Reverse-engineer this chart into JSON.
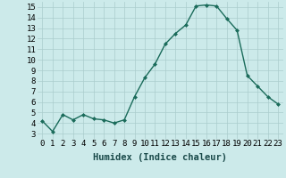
{
  "x": [
    0,
    1,
    2,
    3,
    4,
    5,
    6,
    7,
    8,
    9,
    10,
    11,
    12,
    13,
    14,
    15,
    16,
    17,
    18,
    19,
    20,
    21,
    22,
    23
  ],
  "y": [
    4.2,
    3.2,
    4.8,
    4.3,
    4.8,
    4.4,
    4.3,
    4.0,
    4.3,
    6.5,
    8.3,
    9.6,
    11.5,
    12.5,
    13.3,
    15.1,
    15.2,
    15.1,
    13.9,
    12.8,
    8.5,
    7.5,
    6.5,
    5.8
  ],
  "line_color": "#1a6b5a",
  "marker": "D",
  "marker_size": 2.0,
  "bg_color": "#cceaea",
  "grid_color": "#aacccc",
  "xlabel": "Humidex (Indice chaleur)",
  "xlim": [
    -0.5,
    23.5
  ],
  "ylim": [
    2.5,
    15.5
  ],
  "yticks": [
    3,
    4,
    5,
    6,
    7,
    8,
    9,
    10,
    11,
    12,
    13,
    14,
    15
  ],
  "xticks": [
    0,
    1,
    2,
    3,
    4,
    5,
    6,
    7,
    8,
    9,
    10,
    11,
    12,
    13,
    14,
    15,
    16,
    17,
    18,
    19,
    20,
    21,
    22,
    23
  ],
  "xlabel_fontsize": 7.5,
  "tick_fontsize": 6.5,
  "line_width": 1.0
}
